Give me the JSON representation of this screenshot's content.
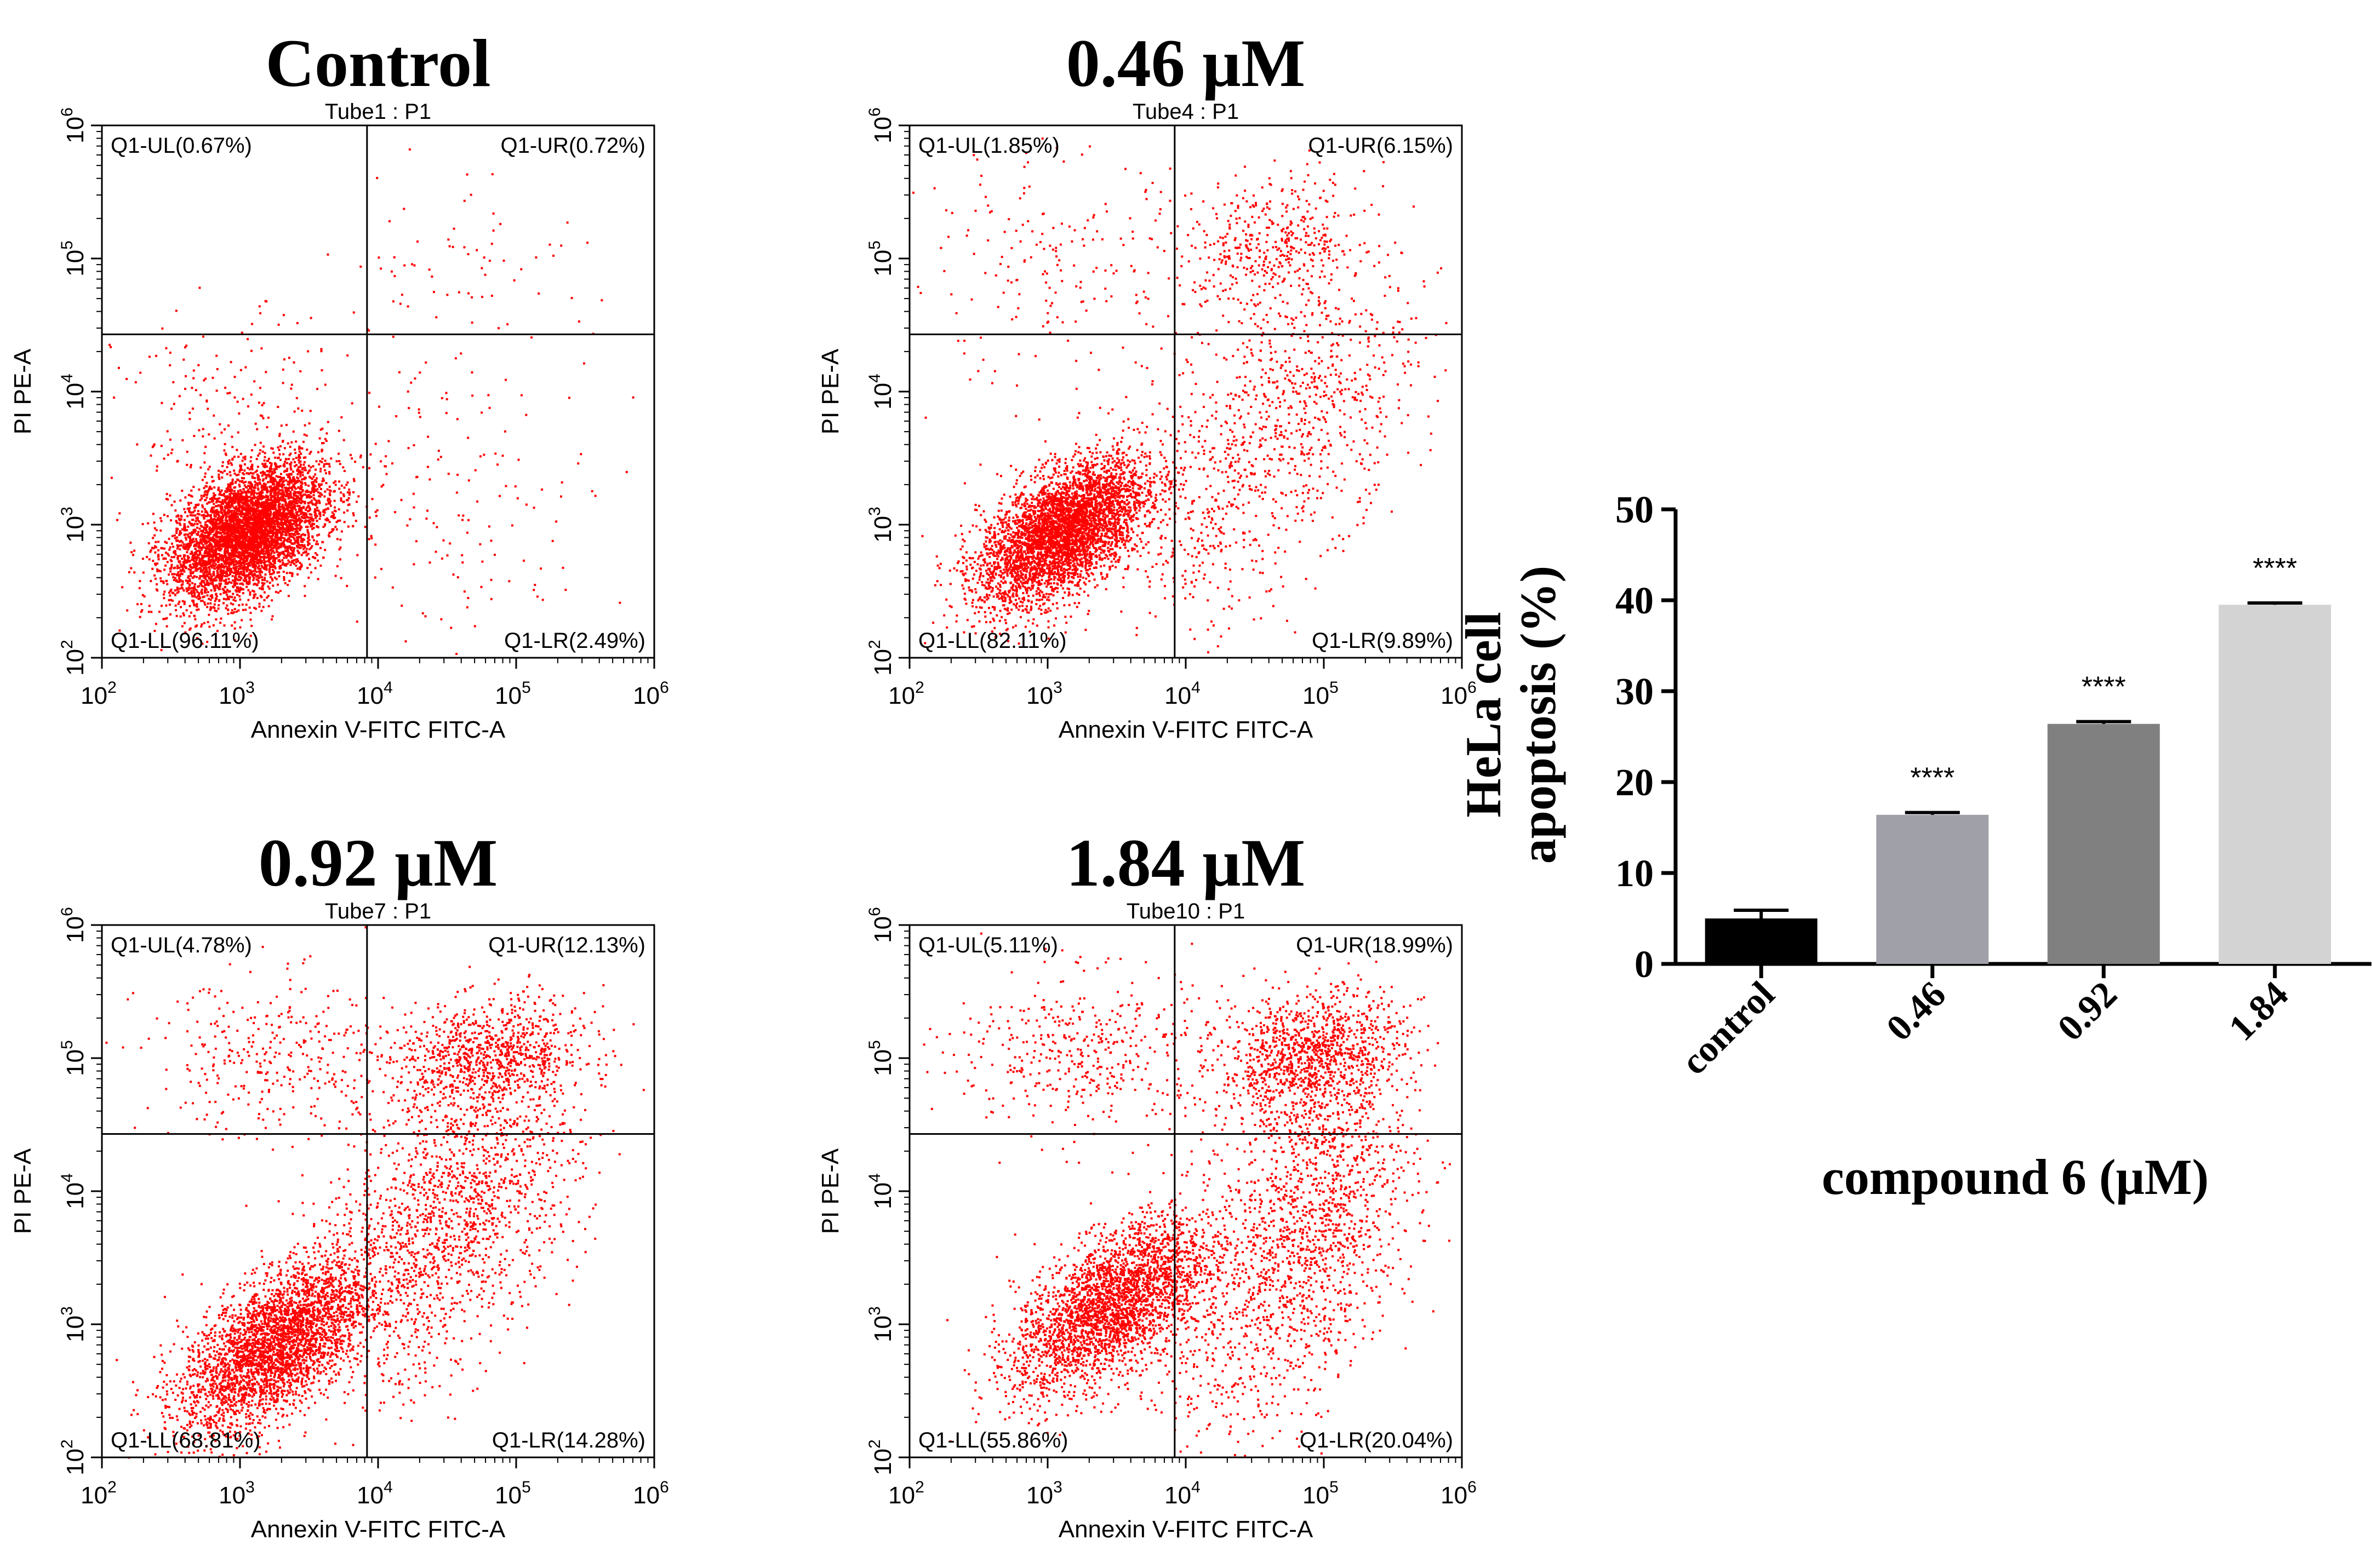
{
  "figure": {
    "scatter_axis": {
      "xlabel": "Annexin V-FITC FITC-A",
      "ylabel": "PI PE-A",
      "x_ticks": [
        {
          "base": "10",
          "exp": "2"
        },
        {
          "base": "10",
          "exp": "3"
        },
        {
          "base": "10",
          "exp": "4"
        },
        {
          "base": "10",
          "exp": "5"
        },
        {
          "base": "10",
          "exp": "6"
        }
      ],
      "y_ticks": [
        {
          "base": "10",
          "exp": "2"
        },
        {
          "base": "10",
          "exp": "3"
        },
        {
          "base": "10",
          "exp": "4"
        },
        {
          "base": "10",
          "exp": "5"
        },
        {
          "base": "10",
          "exp": "6"
        }
      ],
      "log_range": [
        2,
        6
      ],
      "gate_log": {
        "x": 3.92,
        "y": 4.43
      },
      "dot_color": "#ff0000"
    },
    "panels": [
      {
        "title": "Control",
        "subtitle": "Tube1 : P1",
        "ul": "Q1-UL(0.67%)",
        "ur": "Q1-UR(0.72%)",
        "ll": "Q1-LL(96.11%)",
        "lr": "Q1-LR(2.49%)"
      },
      {
        "title": "0.46 µM",
        "subtitle": "Tube4 : P1",
        "ul": "Q1-UL(1.85%)",
        "ur": "Q1-UR(6.15%)",
        "ll": "Q1-LL(82.11%)",
        "lr": "Q1-LR(9.89%)"
      },
      {
        "title": "0.92 µM",
        "subtitle": "Tube7 : P1",
        "ul": "Q1-UL(4.78%)",
        "ur": "Q1-UR(12.13%)",
        "ll": "Q1-LL(68.81%)",
        "lr": "Q1-LR(14.28%)"
      },
      {
        "title": "1.84 µM",
        "subtitle": "Tube10 : P1",
        "ul": "Q1-UL(5.11%)",
        "ur": "Q1-UR(18.99%)",
        "ll": "Q1-LL(55.86%)",
        "lr": "Q1-LR(20.04%)"
      }
    ]
  },
  "chart_data": {
    "type": "bar",
    "title": "",
    "xlabel": "compound 6 (μM)",
    "ylabel_line1": "HeLa cell",
    "ylabel_line2": "apoptosis (%)",
    "categories": [
      "control",
      "0.46",
      "0.92",
      "1.84"
    ],
    "values": [
      5.0,
      16.4,
      26.4,
      39.5
    ],
    "errors": [
      0.9,
      0.25,
      0.25,
      0.2
    ],
    "colors": [
      "#000000",
      "#a0a0a8",
      "#808080",
      "#d3d3d3"
    ],
    "significance": [
      "",
      "****",
      "****",
      "****"
    ],
    "ylim": [
      0,
      50
    ],
    "yticks": [
      "0",
      "10",
      "20",
      "30",
      "40",
      "50"
    ]
  }
}
